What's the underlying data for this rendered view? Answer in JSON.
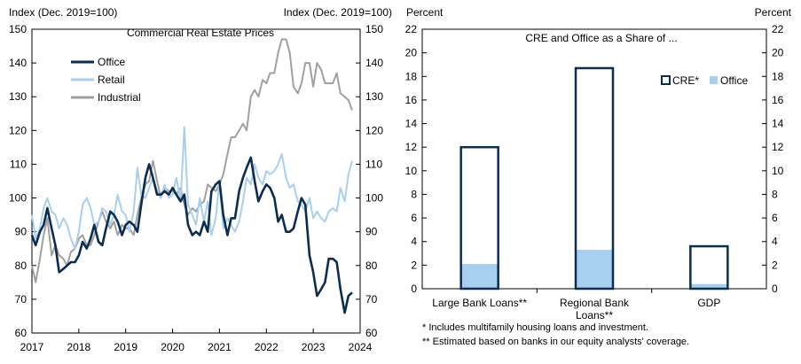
{
  "chart_data": [
    {
      "type": "line",
      "title": "Commercial Real Estate Prices",
      "ylabel_left": "Index (Dec. 2019=100)",
      "ylabel_right": "Index (Dec. 2019=100)",
      "ylim": [
        60,
        150
      ],
      "yticks": [
        60,
        70,
        80,
        90,
        100,
        110,
        120,
        130,
        140,
        150
      ],
      "xlim": [
        2017,
        2024
      ],
      "xticks": [
        "2017",
        "2018",
        "2019",
        "2020",
        "2021",
        "2022",
        "2023",
        "2024"
      ],
      "legend": "top-left",
      "series": [
        {
          "name": "Office",
          "color": "#0b2d52",
          "points": [
            [
              2017.0,
              89
            ],
            [
              2017.08,
              86
            ],
            [
              2017.17,
              90
            ],
            [
              2017.25,
              92
            ],
            [
              2017.33,
              97
            ],
            [
              2017.42,
              91
            ],
            [
              2017.5,
              86
            ],
            [
              2017.58,
              78
            ],
            [
              2017.67,
              79
            ],
            [
              2017.75,
              80
            ],
            [
              2017.83,
              81
            ],
            [
              2017.92,
              81
            ],
            [
              2018.0,
              83
            ],
            [
              2018.08,
              87
            ],
            [
              2018.17,
              85
            ],
            [
              2018.25,
              88
            ],
            [
              2018.33,
              92
            ],
            [
              2018.42,
              87
            ],
            [
              2018.5,
              86
            ],
            [
              2018.58,
              91
            ],
            [
              2018.67,
              96
            ],
            [
              2018.75,
              95
            ],
            [
              2018.83,
              93
            ],
            [
              2018.92,
              89
            ],
            [
              2019.0,
              92
            ],
            [
              2019.08,
              93
            ],
            [
              2019.17,
              92
            ],
            [
              2019.25,
              90
            ],
            [
              2019.33,
              98
            ],
            [
              2019.42,
              106
            ],
            [
              2019.5,
              110
            ],
            [
              2019.58,
              106
            ],
            [
              2019.67,
              101
            ],
            [
              2019.75,
              101
            ],
            [
              2019.83,
              102
            ],
            [
              2019.92,
              101
            ],
            [
              2020.0,
              103
            ],
            [
              2020.08,
              101
            ],
            [
              2020.17,
              99
            ],
            [
              2020.25,
              101
            ],
            [
              2020.33,
              92
            ],
            [
              2020.42,
              89
            ],
            [
              2020.5,
              90
            ],
            [
              2020.58,
              89
            ],
            [
              2020.67,
              93
            ],
            [
              2020.75,
              90
            ],
            [
              2020.83,
              102
            ],
            [
              2020.92,
              104
            ],
            [
              2021.0,
              105
            ],
            [
              2021.08,
              95
            ],
            [
              2021.17,
              89
            ],
            [
              2021.25,
              94
            ],
            [
              2021.33,
              94
            ],
            [
              2021.42,
              102
            ],
            [
              2021.5,
              106
            ],
            [
              2021.58,
              109
            ],
            [
              2021.67,
              112
            ],
            [
              2021.75,
              105
            ],
            [
              2021.83,
              99
            ],
            [
              2021.92,
              102
            ],
            [
              2022.0,
              104
            ],
            [
              2022.08,
              103
            ],
            [
              2022.17,
              100
            ],
            [
              2022.25,
              93
            ],
            [
              2022.33,
              95
            ],
            [
              2022.42,
              90
            ],
            [
              2022.5,
              90
            ],
            [
              2022.58,
              91
            ],
            [
              2022.67,
              96
            ],
            [
              2022.75,
              100
            ],
            [
              2022.83,
              98
            ],
            [
              2022.92,
              83
            ],
            [
              2023.0,
              78
            ],
            [
              2023.08,
              71
            ],
            [
              2023.17,
              73
            ],
            [
              2023.25,
              75
            ],
            [
              2023.33,
              82
            ],
            [
              2023.42,
              82
            ],
            [
              2023.5,
              81
            ],
            [
              2023.58,
              73
            ],
            [
              2023.67,
              66
            ],
            [
              2023.75,
              71
            ],
            [
              2023.83,
              72
            ]
          ]
        },
        {
          "name": "Retail",
          "color": "#a9cfee",
          "points": [
            [
              2017.0,
              95
            ],
            [
              2017.08,
              88
            ],
            [
              2017.17,
              91
            ],
            [
              2017.25,
              97
            ],
            [
              2017.33,
              100
            ],
            [
              2017.42,
              96
            ],
            [
              2017.5,
              95
            ],
            [
              2017.58,
              91
            ],
            [
              2017.67,
              94
            ],
            [
              2017.75,
              92
            ],
            [
              2017.83,
              88
            ],
            [
              2017.92,
              85
            ],
            [
              2018.0,
              90
            ],
            [
              2018.08,
              98
            ],
            [
              2018.17,
              100
            ],
            [
              2018.25,
              97
            ],
            [
              2018.33,
              92
            ],
            [
              2018.42,
              93
            ],
            [
              2018.5,
              97
            ],
            [
              2018.58,
              96
            ],
            [
              2018.67,
              92
            ],
            [
              2018.75,
              95
            ],
            [
              2018.83,
              101
            ],
            [
              2018.92,
              96
            ],
            [
              2019.0,
              95
            ],
            [
              2019.08,
              90
            ],
            [
              2019.17,
              96
            ],
            [
              2019.25,
              109
            ],
            [
              2019.33,
              101
            ],
            [
              2019.42,
              100
            ],
            [
              2019.5,
              103
            ],
            [
              2019.58,
              106
            ],
            [
              2019.67,
              102
            ],
            [
              2019.75,
              100
            ],
            [
              2019.83,
              104
            ],
            [
              2019.92,
              100
            ],
            [
              2020.0,
              101
            ],
            [
              2020.08,
              106
            ],
            [
              2020.17,
              99
            ],
            [
              2020.25,
              121
            ],
            [
              2020.33,
              98
            ],
            [
              2020.42,
              95
            ],
            [
              2020.5,
              92
            ],
            [
              2020.58,
              100
            ],
            [
              2020.67,
              93
            ],
            [
              2020.75,
              99
            ],
            [
              2020.83,
              89
            ],
            [
              2020.92,
              94
            ],
            [
              2021.0,
              105
            ],
            [
              2021.08,
              91
            ],
            [
              2021.17,
              94
            ],
            [
              2021.25,
              92
            ],
            [
              2021.33,
              90
            ],
            [
              2021.42,
              93
            ],
            [
              2021.5,
              99
            ],
            [
              2021.58,
              106
            ],
            [
              2021.67,
              104
            ],
            [
              2021.75,
              110
            ],
            [
              2021.83,
              106
            ],
            [
              2021.92,
              104
            ],
            [
              2022.0,
              108
            ],
            [
              2022.08,
              107
            ],
            [
              2022.17,
              108
            ],
            [
              2022.25,
              110
            ],
            [
              2022.33,
              113
            ],
            [
              2022.42,
              106
            ],
            [
              2022.5,
              103
            ],
            [
              2022.58,
              104
            ],
            [
              2022.67,
              99
            ],
            [
              2022.75,
              98
            ],
            [
              2022.83,
              96
            ],
            [
              2022.92,
              100
            ],
            [
              2023.0,
              94
            ],
            [
              2023.08,
              96
            ],
            [
              2023.17,
              94
            ],
            [
              2023.25,
              93
            ],
            [
              2023.33,
              96
            ],
            [
              2023.42,
              97
            ],
            [
              2023.5,
              96
            ],
            [
              2023.58,
              103
            ],
            [
              2023.67,
              99
            ],
            [
              2023.75,
              107
            ],
            [
              2023.83,
              111
            ]
          ]
        },
        {
          "name": "Industrial",
          "color": "#a0a0a0",
          "points": [
            [
              2017.0,
              80
            ],
            [
              2017.08,
              75
            ],
            [
              2017.17,
              82
            ],
            [
              2017.25,
              89
            ],
            [
              2017.33,
              94
            ],
            [
              2017.42,
              83
            ],
            [
              2017.5,
              86
            ],
            [
              2017.58,
              83
            ],
            [
              2017.67,
              82
            ],
            [
              2017.75,
              80
            ],
            [
              2017.83,
              84
            ],
            [
              2017.92,
              85
            ],
            [
              2018.0,
              88
            ],
            [
              2018.08,
              89
            ],
            [
              2018.17,
              86
            ],
            [
              2018.25,
              86
            ],
            [
              2018.33,
              89
            ],
            [
              2018.42,
              93
            ],
            [
              2018.5,
              96
            ],
            [
              2018.58,
              93
            ],
            [
              2018.67,
              91
            ],
            [
              2018.75,
              93
            ],
            [
              2018.83,
              89
            ],
            [
              2018.92,
              92
            ],
            [
              2019.0,
              91
            ],
            [
              2019.08,
              91
            ],
            [
              2019.17,
              89
            ],
            [
              2019.25,
              95
            ],
            [
              2019.33,
              100
            ],
            [
              2019.42,
              104
            ],
            [
              2019.5,
              105
            ],
            [
              2019.58,
              111
            ],
            [
              2019.67,
              105
            ],
            [
              2019.75,
              100
            ],
            [
              2019.83,
              103
            ],
            [
              2019.92,
              102
            ],
            [
              2020.0,
              102
            ],
            [
              2020.08,
              101
            ],
            [
              2020.17,
              103
            ],
            [
              2020.25,
              98
            ],
            [
              2020.33,
              95
            ],
            [
              2020.42,
              97
            ],
            [
              2020.5,
              96
            ],
            [
              2020.58,
              98
            ],
            [
              2020.67,
              99
            ],
            [
              2020.75,
              104
            ],
            [
              2020.83,
              103
            ],
            [
              2020.92,
              102
            ],
            [
              2021.0,
              104
            ],
            [
              2021.08,
              107
            ],
            [
              2021.17,
              113
            ],
            [
              2021.25,
              118
            ],
            [
              2021.33,
              118
            ],
            [
              2021.42,
              120
            ],
            [
              2021.5,
              122
            ],
            [
              2021.58,
              120
            ],
            [
              2021.67,
              130
            ],
            [
              2021.75,
              132
            ],
            [
              2021.83,
              130
            ],
            [
              2021.92,
              135
            ],
            [
              2022.0,
              134
            ],
            [
              2022.08,
              137
            ],
            [
              2022.17,
              137
            ],
            [
              2022.25,
              143
            ],
            [
              2022.33,
              147
            ],
            [
              2022.42,
              147
            ],
            [
              2022.5,
              143
            ],
            [
              2022.58,
              133
            ],
            [
              2022.67,
              131
            ],
            [
              2022.75,
              134
            ],
            [
              2022.83,
              140
            ],
            [
              2022.92,
              140
            ],
            [
              2023.0,
              133
            ],
            [
              2023.08,
              140
            ],
            [
              2023.17,
              138
            ],
            [
              2023.25,
              134
            ],
            [
              2023.33,
              134
            ],
            [
              2023.42,
              134
            ],
            [
              2023.5,
              137
            ],
            [
              2023.58,
              131
            ],
            [
              2023.67,
              130
            ],
            [
              2023.75,
              129
            ],
            [
              2023.83,
              126
            ]
          ]
        }
      ]
    },
    {
      "type": "bar",
      "title": "CRE and Office as a Share of ...",
      "ylabel_left": "Percent",
      "ylabel_right": "Percent",
      "ylim": [
        0,
        22
      ],
      "yticks": [
        0,
        2,
        4,
        6,
        8,
        10,
        12,
        14,
        16,
        18,
        20,
        22
      ],
      "categories": [
        "Large Bank Loans**",
        "Regional Bank Loans**",
        "GDP"
      ],
      "legend": "top-right",
      "series": [
        {
          "name": "CRE*",
          "color": "#0b2d52",
          "values": [
            12.0,
            18.7,
            3.6
          ]
        },
        {
          "name": "Office",
          "color": "#a9cfee",
          "values": [
            2.1,
            3.3,
            0.4
          ]
        }
      ],
      "notes": [
        "* Includes multifamily housing loans and investment.",
        "** Estimated based on banks in our equity analysts' coverage."
      ]
    }
  ]
}
